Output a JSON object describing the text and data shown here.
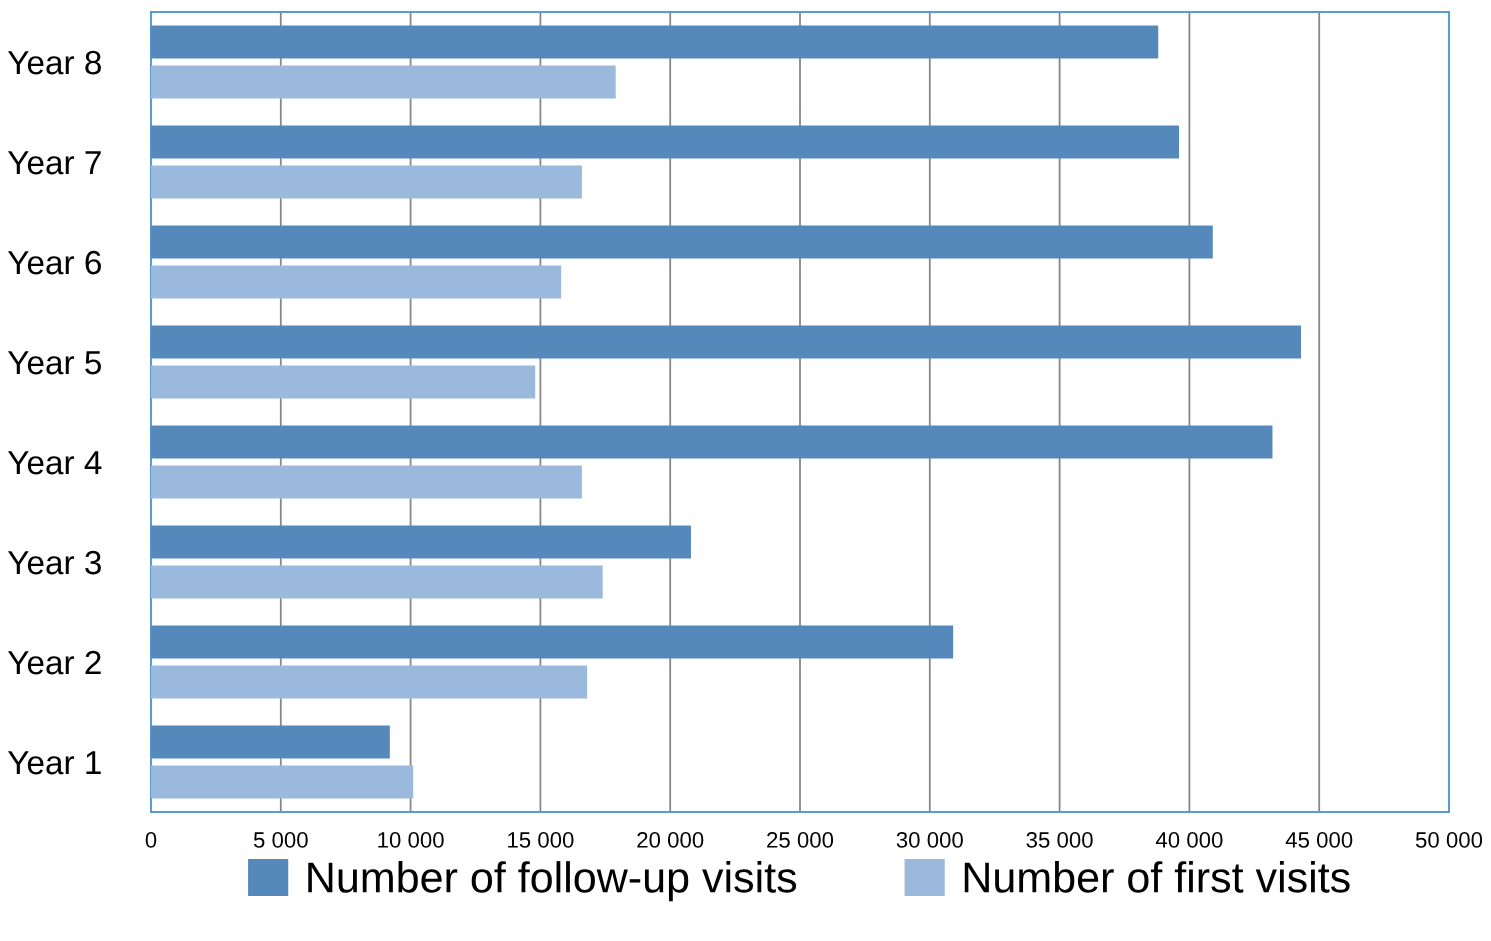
{
  "chart_data": {
    "type": "bar",
    "orientation": "horizontal",
    "categories": [
      "Year 8",
      "Year 7",
      "Year 6",
      "Year 5",
      "Year 4",
      "Year 3",
      "Year 2",
      "Year 1"
    ],
    "series": [
      {
        "name": "Number of follow-up visits",
        "color": "#5589bb",
        "values": [
          38800,
          39600,
          40900,
          44300,
          43200,
          20800,
          30900,
          9200
        ]
      },
      {
        "name": "Number of first visits",
        "color": "#9bb9dc",
        "values": [
          17900,
          16600,
          15800,
          14800,
          16600,
          17400,
          16800,
          10100
        ]
      }
    ],
    "xlim": [
      0,
      50000
    ],
    "xticks": [
      0,
      {
        "value": 5000,
        "label": "5 000"
      },
      {
        "value": 10000,
        "label": "10 000"
      },
      {
        "value": 15000,
        "label": "15 000"
      },
      {
        "value": 20000,
        "label": "20 000"
      },
      {
        "value": 25000,
        "label": "25 000"
      },
      {
        "value": 30000,
        "label": "30 000"
      },
      {
        "value": 35000,
        "label": "35 000"
      },
      {
        "value": 40000,
        "label": "40 000"
      },
      {
        "value": 45000,
        "label": "45 000"
      },
      {
        "value": 50000,
        "label": "50 000"
      }
    ],
    "grid": "x",
    "legend": "bottom"
  }
}
